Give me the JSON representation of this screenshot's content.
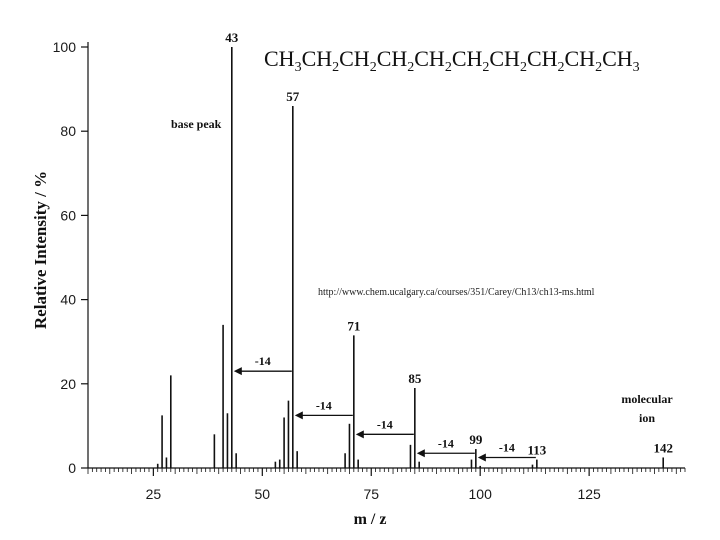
{
  "chart_data": {
    "type": "bar",
    "xlabel": "m / z",
    "ylabel": "Relative Intensity / %",
    "xlim": [
      10,
      147
    ],
    "ylim": [
      0,
      100
    ],
    "xticks": [
      25,
      50,
      75,
      100,
      125
    ],
    "yticks": [
      0,
      20,
      40,
      60,
      80,
      100
    ],
    "formula": {
      "parts": [
        {
          "t": "CH",
          "sub": false
        },
        {
          "t": "3",
          "sub": true
        },
        {
          "t": "CH",
          "sub": false
        },
        {
          "t": "2",
          "sub": true
        },
        {
          "t": "CH",
          "sub": false
        },
        {
          "t": "2",
          "sub": true
        },
        {
          "t": "CH",
          "sub": false
        },
        {
          "t": "2",
          "sub": true
        },
        {
          "t": "CH",
          "sub": false
        },
        {
          "t": "2",
          "sub": true
        },
        {
          "t": "CH",
          "sub": false
        },
        {
          "t": "2",
          "sub": true
        },
        {
          "t": "CH",
          "sub": false
        },
        {
          "t": "2",
          "sub": true
        },
        {
          "t": "CH",
          "sub": false
        },
        {
          "t": "2",
          "sub": true
        },
        {
          "t": "CH",
          "sub": false
        },
        {
          "t": "2",
          "sub": true
        },
        {
          "t": "CH",
          "sub": false
        },
        {
          "t": "3",
          "sub": true
        }
      ]
    },
    "source_url": "http://www.chem.ucalgary.ca/courses/351/Carey/Ch13/ch13-ms.html",
    "peaks": [
      {
        "mz": 26,
        "intensity": 1.0
      },
      {
        "mz": 27,
        "intensity": 12.5
      },
      {
        "mz": 28,
        "intensity": 2.5
      },
      {
        "mz": 29,
        "intensity": 22.0
      },
      {
        "mz": 39,
        "intensity": 8.0
      },
      {
        "mz": 41,
        "intensity": 34.0
      },
      {
        "mz": 42,
        "intensity": 13.0
      },
      {
        "mz": 43,
        "intensity": 100.0
      },
      {
        "mz": 44,
        "intensity": 3.5
      },
      {
        "mz": 53,
        "intensity": 1.5
      },
      {
        "mz": 54,
        "intensity": 2.0
      },
      {
        "mz": 55,
        "intensity": 12.0
      },
      {
        "mz": 56,
        "intensity": 16.0
      },
      {
        "mz": 57,
        "intensity": 86.0
      },
      {
        "mz": 58,
        "intensity": 4.0
      },
      {
        "mz": 69,
        "intensity": 3.5
      },
      {
        "mz": 70,
        "intensity": 10.5
      },
      {
        "mz": 71,
        "intensity": 31.5
      },
      {
        "mz": 72,
        "intensity": 2.0
      },
      {
        "mz": 84,
        "intensity": 5.5
      },
      {
        "mz": 85,
        "intensity": 19.0
      },
      {
        "mz": 86,
        "intensity": 1.5
      },
      {
        "mz": 98,
        "intensity": 2.0
      },
      {
        "mz": 99,
        "intensity": 4.5
      },
      {
        "mz": 100,
        "intensity": 0.5
      },
      {
        "mz": 112,
        "intensity": 0.8
      },
      {
        "mz": 113,
        "intensity": 2.0
      },
      {
        "mz": 142,
        "intensity": 2.5
      }
    ],
    "peak_labels": [
      {
        "mz": 43,
        "text": "43",
        "at": 100
      },
      {
        "mz": 57,
        "text": "57",
        "at": 86
      },
      {
        "mz": 71,
        "text": "71",
        "at": 31.5
      },
      {
        "mz": 85,
        "text": "85",
        "at": 19
      },
      {
        "mz": 99,
        "text": "99",
        "at": 4.5
      },
      {
        "mz": 113,
        "text": "113",
        "at": 2
      },
      {
        "mz": 142,
        "text": "142",
        "at": 2.5
      }
    ],
    "annotations": {
      "base_peak": "base peak",
      "molecular_ion_line1": "molecular",
      "molecular_ion_line2": "ion"
    },
    "losses": [
      {
        "from": 57,
        "to": 43,
        "at": 23,
        "label": "-14"
      },
      {
        "from": 71,
        "to": 57,
        "at": 12.5,
        "label": "-14"
      },
      {
        "from": 85,
        "to": 71,
        "at": 8,
        "label": "-14"
      },
      {
        "from": 99,
        "to": 85,
        "at": 3.5,
        "label": "-14"
      },
      {
        "from": 113,
        "to": 99,
        "at": 2.5,
        "label": "-14"
      }
    ]
  }
}
